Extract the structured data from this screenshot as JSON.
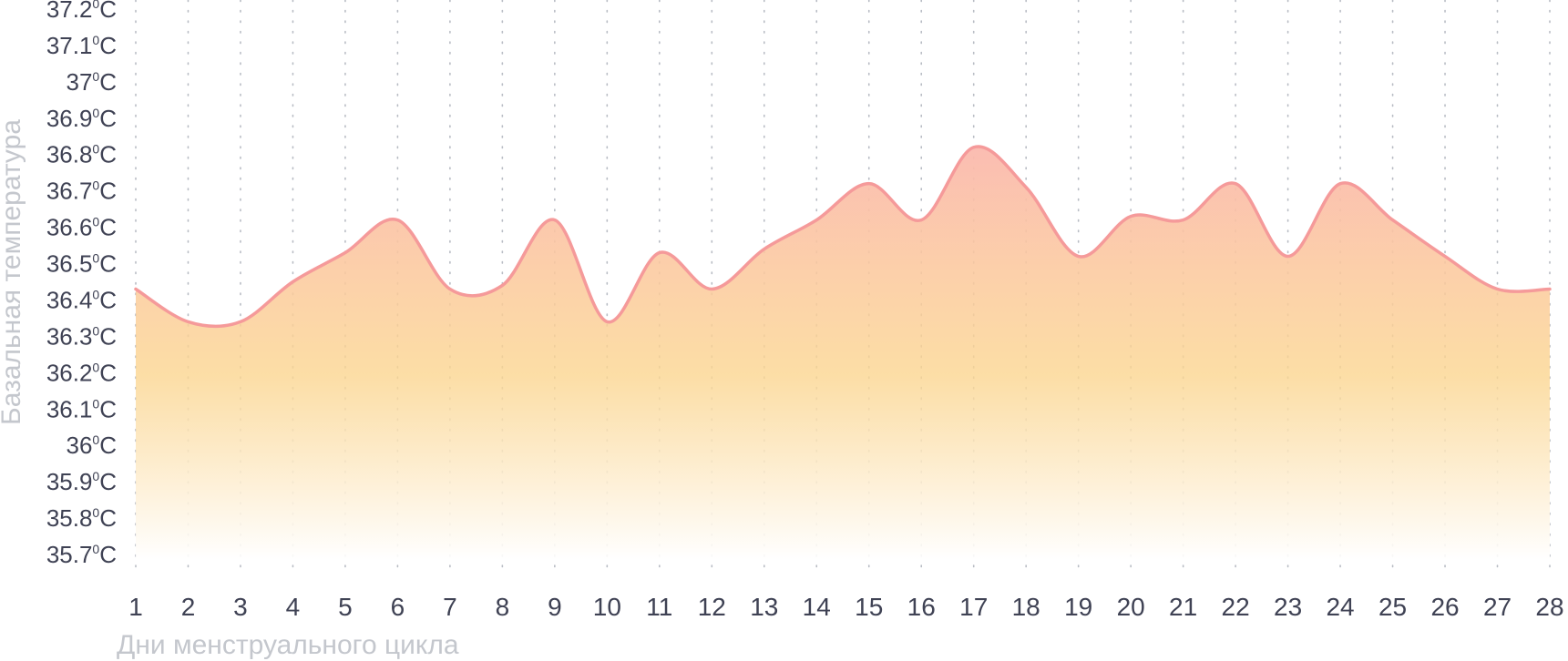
{
  "chart_data": {
    "type": "area",
    "title": "",
    "xlabel": "Дни менструального цикла",
    "ylabel": "Базальная температура",
    "x": [
      1,
      2,
      3,
      4,
      5,
      6,
      7,
      8,
      9,
      10,
      11,
      12,
      13,
      14,
      15,
      16,
      17,
      18,
      19,
      20,
      21,
      22,
      23,
      24,
      25,
      26,
      27,
      28
    ],
    "x_tick_labels": [
      "1",
      "2",
      "3",
      "4",
      "5",
      "6",
      "7",
      "8",
      "9",
      "10",
      "11",
      "12",
      "13",
      "14",
      "15",
      "16",
      "17",
      "18",
      "19",
      "20",
      "21",
      "22",
      "23",
      "24",
      "25",
      "26",
      "27",
      "28"
    ],
    "values": [
      36.43,
      36.34,
      36.34,
      36.45,
      36.53,
      36.62,
      36.43,
      36.44,
      36.62,
      36.34,
      36.53,
      36.43,
      36.54,
      36.62,
      36.72,
      36.62,
      36.82,
      36.71,
      36.52,
      36.63,
      36.62,
      36.72,
      36.52,
      36.72,
      36.62,
      36.52,
      36.43,
      36.43
    ],
    "y_ticks": [
      35.7,
      35.8,
      35.9,
      36.0,
      36.1,
      36.2,
      36.3,
      36.4,
      36.5,
      36.6,
      36.7,
      36.8,
      36.9,
      37.0,
      37.1,
      37.2
    ],
    "y_tick_labels": [
      "35.7",
      "35.8",
      "35.9",
      "36",
      "36.1",
      "36.2",
      "36.3",
      "36.4",
      "36.5",
      "36.6",
      "36.7",
      "36.8",
      "36.9",
      "37",
      "37.1",
      "37.2"
    ],
    "y_unit_degree": "0",
    "y_unit": "C",
    "ylim": [
      35.7,
      37.2
    ],
    "grid": "vertical dotted",
    "colors": {
      "line": "#f59a9a",
      "fill_top": "#fbb9ae",
      "fill_mid": "#fbd58f",
      "fill_bottom": "#ffffff",
      "tick_text": "#3f4254",
      "axis_label": "#c4c7cd",
      "grid": "#b8bcc4"
    }
  }
}
